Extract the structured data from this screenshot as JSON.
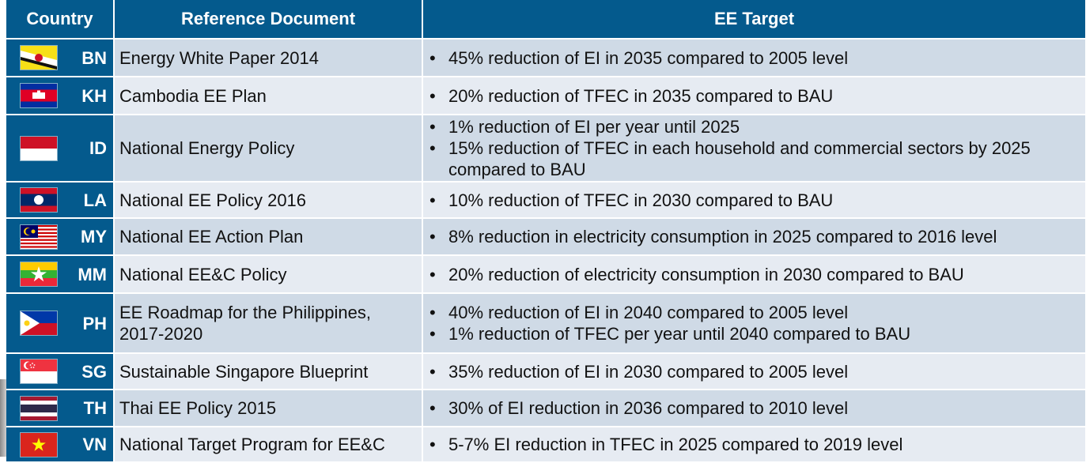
{
  "header": {
    "country": "Country",
    "reference": "Reference Document",
    "target": "EE Target"
  },
  "rows": [
    {
      "code": "BN",
      "flag": "brunei-flag-icon",
      "document": "Energy White Paper 2014",
      "targets": [
        "45% reduction of EI in 2035 compared to 2005 level"
      ]
    },
    {
      "code": "KH",
      "flag": "cambodia-flag-icon",
      "document": "Cambodia EE Plan",
      "targets": [
        "20% reduction of TFEC in 2035 compared to BAU"
      ]
    },
    {
      "code": "ID",
      "flag": "indonesia-flag-icon",
      "document": "National Energy Policy",
      "targets": [
        "1% reduction of EI per year until 2025",
        "15% reduction of TFEC in each household and commercial sectors by 2025 compared to BAU"
      ]
    },
    {
      "code": "LA",
      "flag": "laos-flag-icon",
      "document": "National EE Policy 2016",
      "targets": [
        "10% reduction of TFEC in 2030 compared to BAU"
      ]
    },
    {
      "code": "MY",
      "flag": "malaysia-flag-icon",
      "document": "National EE Action Plan",
      "targets": [
        "8% reduction in electricity consumption in 2025 compared to 2016 level"
      ]
    },
    {
      "code": "MM",
      "flag": "myanmar-flag-icon",
      "document": "National EE&C Policy",
      "targets": [
        "20% reduction of electricity consumption in 2030 compared to BAU"
      ]
    },
    {
      "code": "PH",
      "flag": "philippines-flag-icon",
      "document": "EE Roadmap for the Philippines, 2017-2020",
      "targets": [
        "40% reduction of EI in 2040 compared to 2005 level",
        "1% reduction of TFEC per year until 2040 compared to BAU"
      ]
    },
    {
      "code": "SG",
      "flag": "singapore-flag-icon",
      "document": "Sustainable Singapore Blueprint",
      "targets": [
        "35% reduction of EI in 2030 compared to 2005 level"
      ]
    },
    {
      "code": "TH",
      "flag": "thailand-flag-icon",
      "document": "Thai EE Policy 2015",
      "targets": [
        "30% of EI reduction in 2036 compared to 2010 level"
      ]
    },
    {
      "code": "VN",
      "flag": "vietnam-flag-icon",
      "document": "National Target Program for EE&C",
      "targets": [
        "5-7% EI reduction in TFEC in 2025 compared to 2019 level"
      ]
    }
  ],
  "colors": {
    "header_bg": "#045a8d",
    "row_odd": "#cfdae6",
    "row_even": "#e6ebf2"
  }
}
